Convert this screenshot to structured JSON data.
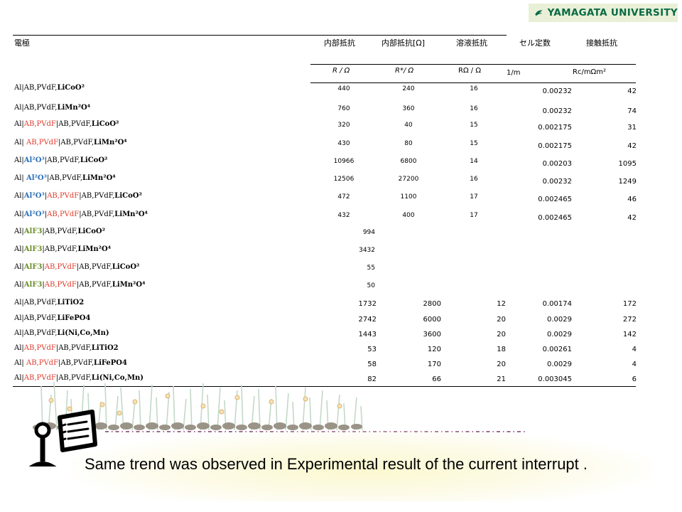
{
  "logo": {
    "text": "YAMAGATA UNIVERSITY",
    "color": "#0a6a45"
  },
  "headers": {
    "electrode": "電極",
    "internal_resistance": "内部抵抗",
    "internal_resistance_star": "内部抵抗[Ω]",
    "solution_resistance": "溶液抵抗",
    "cell_constant": "セル定数",
    "contact_resistance": "接触抵抗"
  },
  "units": {
    "r": "R / Ω",
    "r_star": "R*/ Ω",
    "r_omega": "RΩ / Ω",
    "inv_m": "1/m",
    "rc": "Rc/mΩm²"
  },
  "rows_a": [
    {
      "segments": [
        [
          "Al|AB,PVdF,",
          "k"
        ],
        [
          "LiCoO²",
          "b"
        ]
      ],
      "v": [
        "440",
        "240",
        "16",
        "0.00232",
        "42"
      ]
    },
    {
      "segments": [
        [
          "Al|AB,PVdF,",
          "k"
        ],
        [
          "LiMn²O⁴",
          "b"
        ]
      ],
      "v": [
        "760",
        "360",
        "16",
        "0.00232",
        "74"
      ]
    },
    {
      "segments": [
        [
          "Al|",
          "k"
        ],
        [
          "AB,PVdF",
          "r"
        ],
        [
          "|AB,PVdF,",
          "k"
        ],
        [
          "LiCoO²",
          "b"
        ]
      ],
      "v": [
        "320",
        "40",
        "15",
        "0.002175",
        "31"
      ]
    },
    {
      "segments": [
        [
          "Al| ",
          "k"
        ],
        [
          "AB,PVdF",
          "r"
        ],
        [
          "|AB,PVdF,",
          "k"
        ],
        [
          "LiMn²O⁴",
          "b"
        ]
      ],
      "v": [
        "430",
        "80",
        "15",
        "0.002175",
        "42"
      ]
    },
    {
      "segments": [
        [
          "Al|",
          "k"
        ],
        [
          "Al²O³",
          "u"
        ],
        [
          "|AB,PVdF,",
          "k"
        ],
        [
          "LiCoO²",
          "b"
        ]
      ],
      "v": [
        "10966",
        "6800",
        "14",
        "0.00203",
        "1095"
      ]
    },
    {
      "segments": [
        [
          "Al| ",
          "k"
        ],
        [
          "Al²O³",
          "u"
        ],
        [
          "|AB,PVdF,",
          "k"
        ],
        [
          "LiMn²O⁴",
          "b"
        ]
      ],
      "v": [
        "12506",
        "27200",
        "16",
        "0.00232",
        "1249"
      ]
    },
    {
      "segments": [
        [
          "Al|",
          "k"
        ],
        [
          "Al²O³",
          "u"
        ],
        [
          "|",
          "k"
        ],
        [
          "AB,PVdF",
          "r"
        ],
        [
          "|AB,PVdF,",
          "k"
        ],
        [
          "LiCoO²",
          "b"
        ]
      ],
      "v": [
        "472",
        "1100",
        "17",
        "0.002465",
        "46"
      ]
    },
    {
      "segments": [
        [
          "Al|",
          "k"
        ],
        [
          "Al²O³",
          "u"
        ],
        [
          "|",
          "k"
        ],
        [
          "AB,PVdF",
          "r"
        ],
        [
          "|AB,PVdF,",
          "k"
        ],
        [
          "LiMn²O⁴",
          "b"
        ]
      ],
      "v": [
        "432",
        "400",
        "17",
        "0.002465",
        "42"
      ]
    }
  ],
  "rows_b": [
    {
      "segments": [
        [
          "Al|",
          "k"
        ],
        [
          "AlF3",
          "g"
        ],
        [
          "|AB,PVdF,",
          "k"
        ],
        [
          "LiCoO²",
          "b"
        ]
      ],
      "v": "994"
    },
    {
      "segments": [
        [
          "Al|",
          "k"
        ],
        [
          "AlF3",
          "g"
        ],
        [
          "|AB,PVdF,",
          "k"
        ],
        [
          "LiMn²O⁴",
          "b"
        ]
      ],
      "v": "3432"
    },
    {
      "segments": [
        [
          "Al|",
          "k"
        ],
        [
          "AlF3",
          "g"
        ],
        [
          "|",
          "k"
        ],
        [
          "AB,PVdF",
          "r"
        ],
        [
          "|AB,PVdF,",
          "k"
        ],
        [
          "LiCoO²",
          "b"
        ]
      ],
      "v": "55"
    },
    {
      "segments": [
        [
          "Al|",
          "k"
        ],
        [
          "AlF3",
          "g"
        ],
        [
          "|",
          "k"
        ],
        [
          "AB,PVdF",
          "r"
        ],
        [
          "|AB,PVdF,",
          "k"
        ],
        [
          "LiMn²O⁴",
          "b"
        ]
      ],
      "v": "50"
    }
  ],
  "rows_c": [
    {
      "segments": [
        [
          "Al|AB,PVdF,",
          "k"
        ],
        [
          "LiTiO2",
          "b"
        ]
      ],
      "v": [
        "1732",
        "2800",
        "12",
        "0.00174",
        "172"
      ]
    },
    {
      "segments": [
        [
          "Al|AB,PVdF,",
          "k"
        ],
        [
          "LiFePO4",
          "b"
        ]
      ],
      "v": [
        "2742",
        "6000",
        "20",
        "0.0029",
        "272"
      ]
    },
    {
      "segments": [
        [
          "Al|AB,PVdF,",
          "k"
        ],
        [
          "Li(Ni,Co,Mn)",
          "b"
        ]
      ],
      "v": [
        "1443",
        "3600",
        "20",
        "0.0029",
        "142"
      ]
    },
    {
      "segments": [
        [
          "Al|",
          "k"
        ],
        [
          "AB,PVdF",
          "r"
        ],
        [
          "|AB,PVdF,",
          "k"
        ],
        [
          "LiTiO2",
          "b"
        ]
      ],
      "v": [
        "53",
        "120",
        "18",
        "0.00261",
        "4"
      ]
    },
    {
      "segments": [
        [
          "Al| ",
          "k"
        ],
        [
          "AB,PVdF",
          "r"
        ],
        [
          "|AB,PVdF,",
          "k"
        ],
        [
          "LiFePO4",
          "b"
        ]
      ],
      "v": [
        "58",
        "170",
        "20",
        "0.0029",
        "4"
      ]
    },
    {
      "segments": [
        [
          "Al|",
          "k"
        ],
        [
          "AB,PVdF",
          "r"
        ],
        [
          "|AB,PVdF,",
          "k"
        ],
        [
          "Li(Ni,Co,Mn)",
          "b"
        ]
      ],
      "v": [
        "82",
        "66",
        "21",
        "0.003045",
        "6"
      ]
    }
  ],
  "colors": {
    "red": "#e03a2c",
    "blue": "#2c6fb8",
    "green": "#6b8f2a"
  },
  "footer": {
    "text": "Same trend was observed in Experimental result of the current interrupt ."
  }
}
